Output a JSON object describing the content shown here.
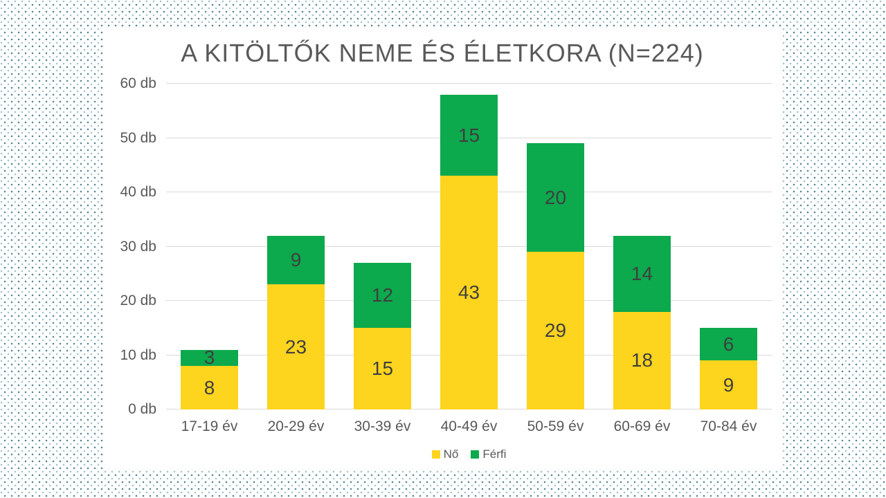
{
  "slide": {
    "background": {
      "base_color": "#FFFFFF",
      "dot_color_dark": "#4E7F8C",
      "dot_color_light": "#9FC0C9"
    },
    "panel_color": "#FFFFFF"
  },
  "chart_data": {
    "type": "bar",
    "stacked": true,
    "title": "A KITÖLTŐK NEME ÉS ÉLETKORA (N=224)",
    "categories": [
      "17-19 év",
      "20-29 év",
      "30-39 év",
      "40-49 év",
      "50-59 év",
      "60-69 év",
      "70-84 év"
    ],
    "series": [
      {
        "name": "Nő",
        "color": "#FDD41E",
        "values": [
          8,
          23,
          15,
          43,
          29,
          18,
          9
        ]
      },
      {
        "name": "Férfi",
        "color": "#0CA94D",
        "values": [
          3,
          9,
          12,
          15,
          20,
          14,
          6
        ]
      }
    ],
    "ylim": [
      0,
      60
    ],
    "yticks": [
      "0 db",
      "10 db",
      "20 db",
      "30 db",
      "40 db",
      "50 db",
      "60 db"
    ],
    "grid": true,
    "legend_position": "bottom",
    "colors": {
      "gridline": "#D9D9D9",
      "title_text": "#595959",
      "tick_text": "#595959",
      "value_text": "#3F3F3F"
    }
  }
}
